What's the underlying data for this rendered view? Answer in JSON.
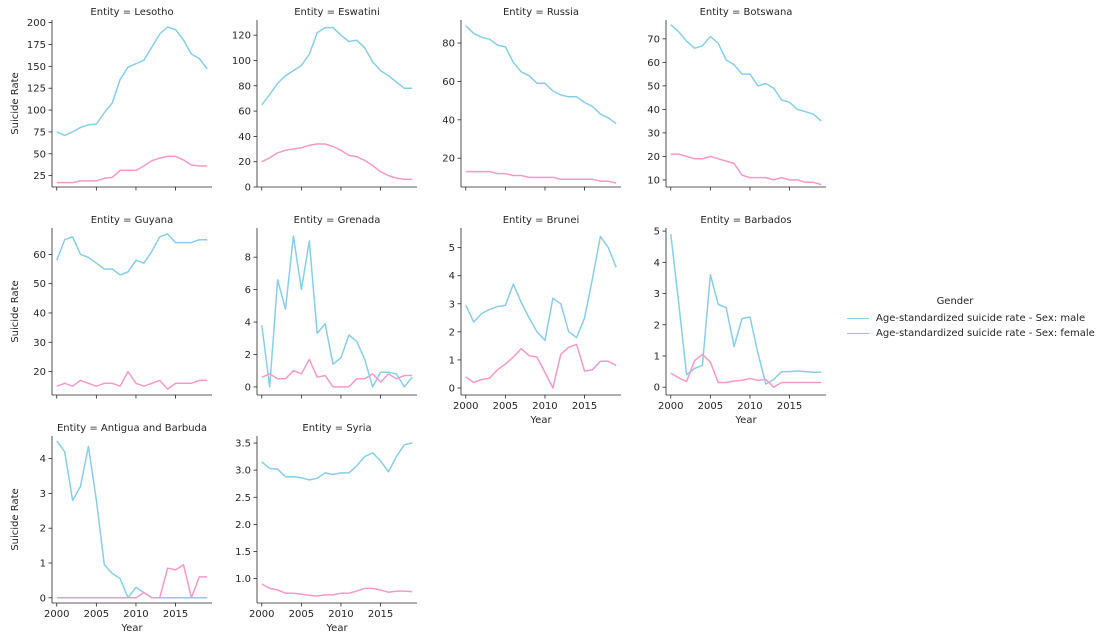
{
  "colors": {
    "male": "#87ceeb",
    "female": "#f49ac9"
  },
  "chart_data": {
    "type": "line",
    "layout": "facet-grid",
    "x": [
      2000,
      2001,
      2002,
      2003,
      2004,
      2005,
      2006,
      2007,
      2008,
      2009,
      2010,
      2011,
      2012,
      2013,
      2014,
      2015,
      2016,
      2017,
      2018,
      2019
    ],
    "xlabel": "Year",
    "ylabel": "Suicide Rate",
    "xticks": [
      2000,
      2005,
      2010,
      2015
    ],
    "legend": {
      "title": "Gender",
      "placement": "right",
      "entries": [
        "Age-standardized suicide rate - Sex: male",
        "Age-standardized suicide rate - Sex: female"
      ]
    },
    "facets": [
      {
        "title": "Entity = Lesotho",
        "ylim": [
          12,
          203
        ],
        "yticks": [
          25,
          50,
          75,
          100,
          125,
          150,
          175,
          200
        ],
        "male": [
          75,
          71,
          75,
          80,
          83,
          84,
          97,
          108,
          135,
          149,
          153,
          157,
          172,
          187,
          195,
          192,
          180,
          164,
          159,
          147
        ],
        "female": [
          17,
          17,
          17,
          19,
          19,
          19,
          22,
          23,
          31,
          31,
          31,
          36,
          42,
          45,
          47,
          47,
          43,
          37,
          36,
          36
        ]
      },
      {
        "title": "Entity = Eswatini",
        "ylim": [
          0,
          132
        ],
        "yticks": [
          0,
          20,
          40,
          60,
          80,
          100,
          120
        ],
        "male": [
          65,
          73,
          82,
          88,
          92,
          96,
          105,
          122,
          126,
          126,
          120,
          115,
          116,
          110,
          99,
          92,
          88,
          83,
          78,
          78
        ],
        "female": [
          20,
          23,
          27,
          29,
          30,
          31,
          33,
          34,
          34,
          32,
          29,
          25,
          24,
          21,
          17,
          12,
          9,
          7,
          6,
          6
        ]
      },
      {
        "title": "Entity = Russia",
        "ylim": [
          5,
          92
        ],
        "yticks": [
          20,
          40,
          60,
          80
        ],
        "male": [
          89,
          85,
          83,
          82,
          79,
          78,
          70,
          65,
          63,
          59,
          59,
          55,
          53,
          52,
          52,
          49,
          47,
          43,
          41,
          38
        ],
        "female": [
          13,
          13,
          13,
          13,
          12,
          12,
          11,
          11,
          10,
          10,
          10,
          10,
          9,
          9,
          9,
          9,
          9,
          8,
          8,
          7
        ]
      },
      {
        "title": "Entity = Botswana",
        "ylim": [
          7,
          78
        ],
        "yticks": [
          10,
          20,
          30,
          40,
          50,
          60,
          70
        ],
        "male": [
          76,
          73,
          69,
          66,
          67,
          71,
          68,
          61,
          59,
          55,
          55,
          50,
          51,
          49,
          44,
          43,
          40,
          39,
          38,
          35
        ],
        "female": [
          21,
          21,
          20,
          19,
          19,
          20,
          19,
          18,
          17,
          12,
          11,
          11,
          11,
          10,
          11,
          10,
          10,
          9,
          9,
          8
        ]
      },
      {
        "title": "Entity = Guyana",
        "ylim": [
          12,
          69
        ],
        "yticks": [
          20,
          30,
          40,
          50,
          60
        ],
        "male": [
          58,
          65,
          66,
          60,
          59,
          57,
          55,
          55,
          53,
          54,
          58,
          57,
          61,
          66,
          67,
          64,
          64,
          64,
          65,
          65
        ],
        "female": [
          15,
          16,
          15,
          17,
          16,
          15,
          16,
          16,
          15,
          20,
          16,
          15,
          16,
          17,
          14,
          16,
          16,
          16,
          17,
          17
        ]
      },
      {
        "title": "Entity = Grenada",
        "ylim": [
          -0.5,
          9.8
        ],
        "yticks": [
          0,
          2,
          4,
          6,
          8
        ],
        "male": [
          3.8,
          0,
          6.6,
          4.8,
          9.3,
          6,
          9,
          3.3,
          3.9,
          1.4,
          1.8,
          3.2,
          2.8,
          1.7,
          0,
          0.9,
          0.9,
          0.8,
          0,
          0.6
        ],
        "female": [
          0.6,
          0.8,
          0.5,
          0.5,
          1,
          0.8,
          1.7,
          0.6,
          0.7,
          0,
          0,
          0,
          0.5,
          0.5,
          0.8,
          0.3,
          0.8,
          0.5,
          0.7,
          0.7
        ]
      },
      {
        "title": "Entity = Brunei",
        "ylim": [
          -0.25,
          5.7
        ],
        "yticks": [
          0,
          1,
          2,
          3,
          4,
          5
        ],
        "male": [
          2.95,
          2.35,
          2.65,
          2.8,
          2.9,
          2.95,
          3.7,
          3.05,
          2.5,
          2,
          1.7,
          3.2,
          3,
          2,
          1.8,
          2.5,
          3.9,
          5.4,
          5,
          4.3
        ],
        "female": [
          0.4,
          0.2,
          0.3,
          0.35,
          0.65,
          0.85,
          1.1,
          1.4,
          1.15,
          1.1,
          0.55,
          0,
          1.2,
          1.45,
          1.55,
          0.6,
          0.65,
          0.95,
          0.95,
          0.8
        ]
      },
      {
        "title": "Entity = Barbados",
        "ylim": [
          -0.25,
          5.1
        ],
        "yticks": [
          0,
          1,
          2,
          3,
          4,
          5
        ],
        "male": [
          4.9,
          2.7,
          0.4,
          0.6,
          0.7,
          3.6,
          2.65,
          2.55,
          1.3,
          2.2,
          2.25,
          1.1,
          0.1,
          0.25,
          0.5,
          0.5,
          0.52,
          0.5,
          0.48,
          0.48
        ],
        "female": [
          0.45,
          0.3,
          0.18,
          0.85,
          1.05,
          0.8,
          0.15,
          0.15,
          0.2,
          0.22,
          0.28,
          0.22,
          0.25,
          0,
          0.15,
          0.15,
          0.15,
          0.15,
          0.15,
          0.15
        ]
      },
      {
        "title": "Entity = Antigua and Barbuda",
        "ylim": [
          -0.15,
          4.65
        ],
        "yticks": [
          0,
          1,
          2,
          3,
          4
        ],
        "male": [
          4.5,
          4.2,
          2.8,
          3.2,
          4.35,
          2.8,
          0.95,
          0.7,
          0.55,
          0,
          0.3,
          0.15,
          0,
          0,
          0,
          0,
          0,
          0,
          0,
          0
        ],
        "female": [
          0,
          0,
          0,
          0,
          0,
          0,
          0,
          0,
          0,
          0,
          0,
          0.15,
          0,
          0,
          0.85,
          0.8,
          0.95,
          0,
          0.6,
          0.6
        ]
      },
      {
        "title": "Entity = Syria",
        "ylim": [
          0.55,
          3.63
        ],
        "yticks": [
          1.0,
          1.5,
          2.0,
          2.5,
          3.0,
          3.5
        ],
        "male": [
          3.15,
          3.03,
          3.02,
          2.88,
          2.88,
          2.86,
          2.82,
          2.85,
          2.95,
          2.92,
          2.95,
          2.95,
          3.08,
          3.25,
          3.32,
          3.17,
          2.97,
          3.25,
          3.47,
          3.5
        ],
        "female": [
          0.9,
          0.82,
          0.79,
          0.73,
          0.73,
          0.71,
          0.69,
          0.68,
          0.7,
          0.7,
          0.73,
          0.73,
          0.77,
          0.82,
          0.82,
          0.79,
          0.75,
          0.77,
          0.77,
          0.76
        ]
      }
    ]
  }
}
